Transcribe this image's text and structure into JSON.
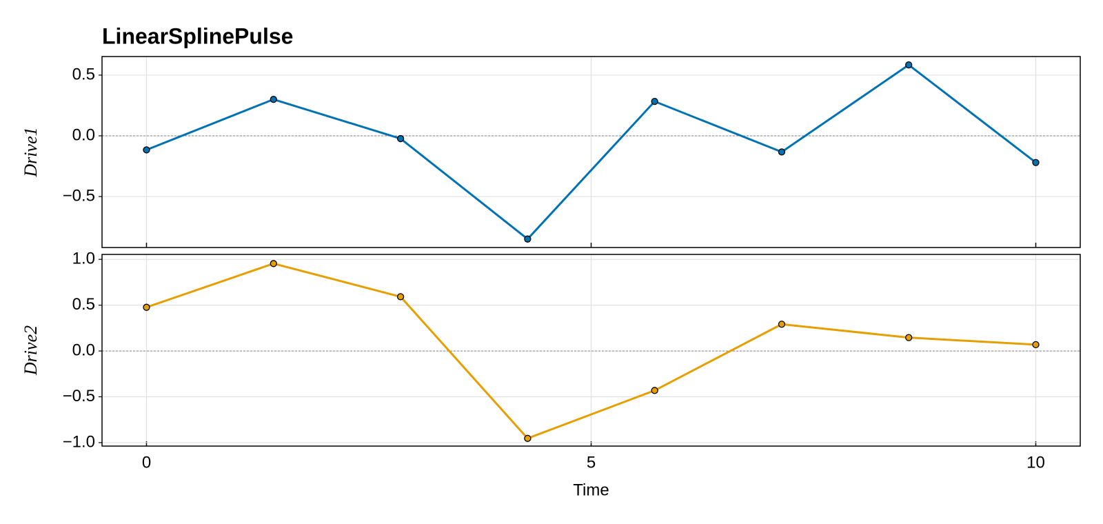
{
  "chart_data": [
    {
      "type": "line",
      "title": "LinearSplinePulse",
      "ylabel": "Drive1",
      "x": [
        0,
        1.4286,
        2.8571,
        4.2857,
        5.7143,
        7.1429,
        8.5714,
        10
      ],
      "series": [
        {
          "name": "Drive1",
          "color": "#0072b2",
          "values": [
            -0.116,
            0.3,
            -0.023,
            -0.85,
            0.283,
            -0.133,
            0.584,
            -0.22
          ]
        }
      ],
      "xlim": [
        -0.5,
        10.5
      ],
      "xticks": [
        0,
        5,
        10
      ],
      "show_xtick_labels": false,
      "ylim": [
        -0.92,
        0.653
      ],
      "yticks": [
        {
          "value": -0.5,
          "label": "−0.5"
        },
        {
          "value": 0,
          "label": "0.0"
        },
        0.5
      ],
      "hline": 0,
      "grid": true
    },
    {
      "type": "line",
      "ylabel": "Drive2",
      "xlabel": "Time",
      "x": [
        0,
        1.4286,
        2.8571,
        4.2857,
        5.7143,
        7.1429,
        8.5714,
        10
      ],
      "series": [
        {
          "name": "Drive2",
          "color": "#e69f00",
          "values": [
            0.477,
            0.954,
            0.592,
            -0.954,
            -0.431,
            0.292,
            0.146,
            0.069
          ]
        }
      ],
      "xlim": [
        -0.5,
        10.5
      ],
      "xticks": [
        0,
        5,
        10
      ],
      "show_xtick_labels": true,
      "ylim": [
        -1.038,
        1.054
      ],
      "yticks": [
        {
          "value": -1,
          "label": "−1.0"
        },
        {
          "value": -0.5,
          "label": "−0.5"
        },
        {
          "value": 0,
          "label": "0.0"
        },
        0.5,
        {
          "value": 1,
          "label": "1.0"
        }
      ],
      "hline": 0,
      "grid": true
    }
  ]
}
